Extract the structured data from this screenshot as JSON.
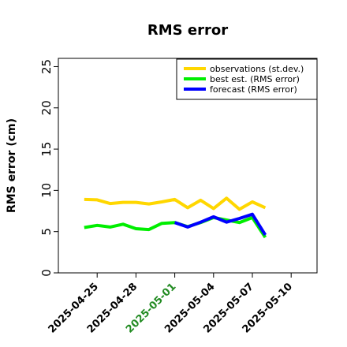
{
  "chart_data": {
    "type": "line",
    "title": "RMS error",
    "xlabel": "",
    "ylabel": "RMS error (cm)",
    "ylim": [
      0,
      26
    ],
    "yticks": [
      0,
      5,
      10,
      15,
      20,
      25
    ],
    "xlim": [
      "2025-04-22",
      "2025-05-12"
    ],
    "xticks": [
      {
        "date": "2025-04-25",
        "label": "2025-04-25",
        "color": "#000000"
      },
      {
        "date": "2025-04-28",
        "label": "2025-04-28",
        "color": "#000000"
      },
      {
        "date": "2025-05-01",
        "label": "2025-05-01",
        "color": "#228b22"
      },
      {
        "date": "2025-05-04",
        "label": "2025-05-04",
        "color": "#000000"
      },
      {
        "date": "2025-05-07",
        "label": "2025-05-07",
        "color": "#000000"
      },
      {
        "date": "2025-05-10",
        "label": "2025-05-10",
        "color": "#000000"
      }
    ],
    "grid": false,
    "legend_position": "top-right",
    "series": [
      {
        "name": "observations (st.dev.)",
        "color": "#ffd700",
        "x": [
          "2025-04-24",
          "2025-04-25",
          "2025-04-26",
          "2025-04-27",
          "2025-04-28",
          "2025-04-29",
          "2025-04-30",
          "2025-05-01",
          "2025-05-02",
          "2025-05-03",
          "2025-05-04",
          "2025-05-05",
          "2025-05-06",
          "2025-05-07",
          "2025-05-08"
        ],
        "y": [
          8.9,
          8.85,
          8.4,
          8.55,
          8.55,
          8.35,
          8.6,
          8.9,
          7.9,
          8.8,
          7.8,
          9.05,
          7.7,
          8.6,
          7.9
        ]
      },
      {
        "name": "best est. (RMS error)",
        "color": "#00ee00",
        "x": [
          "2025-04-24",
          "2025-04-25",
          "2025-04-26",
          "2025-04-27",
          "2025-04-28",
          "2025-04-29",
          "2025-04-30",
          "2025-05-01",
          "2025-05-02",
          "2025-05-03",
          "2025-05-04",
          "2025-05-05",
          "2025-05-06",
          "2025-05-07",
          "2025-05-08"
        ],
        "y": [
          5.5,
          5.75,
          5.55,
          5.9,
          5.35,
          5.25,
          6.0,
          6.1,
          5.6,
          6.1,
          6.7,
          6.4,
          6.1,
          6.7,
          4.3
        ]
      },
      {
        "name": "forecast (RMS error)",
        "color": "#0000ff",
        "x": [
          "2025-05-01",
          "2025-05-02",
          "2025-05-03",
          "2025-05-04",
          "2025-05-05",
          "2025-05-06",
          "2025-05-07",
          "2025-05-08"
        ],
        "y": [
          6.1,
          5.55,
          6.15,
          6.8,
          6.15,
          6.6,
          7.1,
          4.6
        ]
      }
    ]
  }
}
